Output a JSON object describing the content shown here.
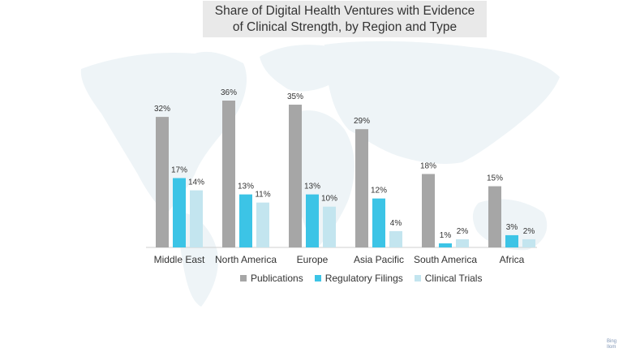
{
  "chart_data": {
    "type": "bar",
    "title_lines": [
      "Share of Digital Health Ventures with Evidence",
      "of Clinical Strength, by Region and Type"
    ],
    "categories": [
      "Middle East",
      "North America",
      "Europe",
      "Asia Pacific",
      "South America",
      "Africa"
    ],
    "series": [
      {
        "name": "Publications",
        "values": [
          32,
          36,
          35,
          29,
          18,
          15
        ],
        "color": "#a6a6a6"
      },
      {
        "name": "Regulatory Filings",
        "values": [
          17,
          13,
          13,
          12,
          1,
          3
        ],
        "color": "#3cc4e6"
      },
      {
        "name": "Clinical Trials",
        "values": [
          14,
          11,
          10,
          4,
          2,
          2
        ],
        "color": "#c3e5ef"
      }
    ],
    "value_suffix": "%",
    "ylim": [
      0,
      40
    ],
    "grid": false,
    "legend_position": "bottom",
    "background": "world-map-watermark"
  },
  "credit": {
    "line1": "Bing",
    "line2": "Ilom"
  }
}
